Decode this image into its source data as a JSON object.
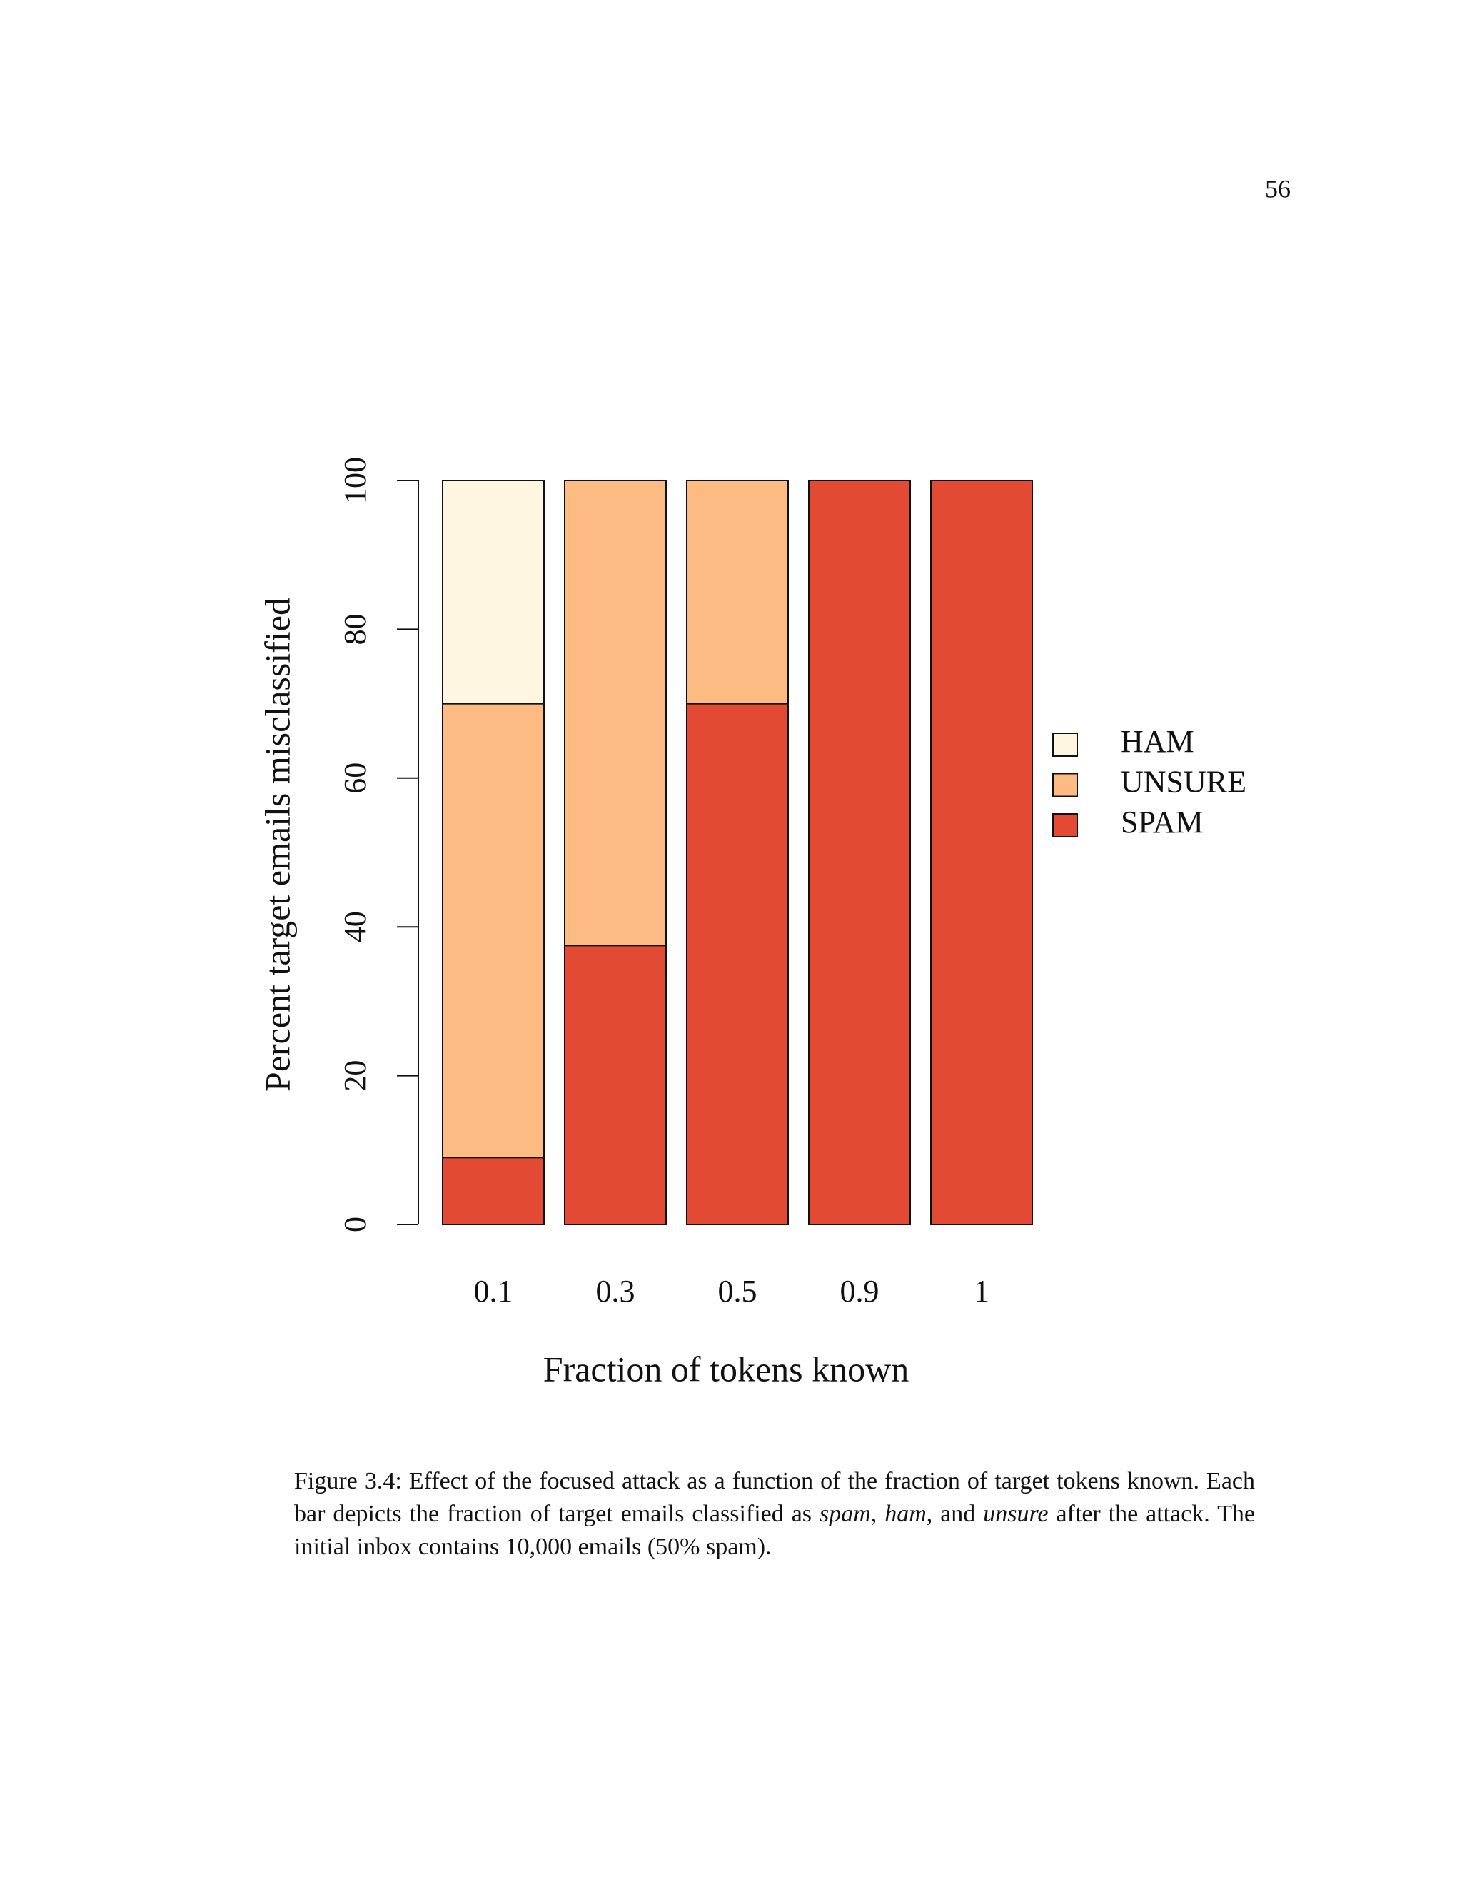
{
  "page_number": "56",
  "chart_data": {
    "type": "stacked_bar",
    "xlabel": "Fraction of tokens known",
    "ylabel": "Percent target emails misclassified",
    "categories": [
      "0.1",
      "0.3",
      "0.5",
      "0.9",
      "1"
    ],
    "series": [
      {
        "name": "HAM",
        "color": "#fef6e0",
        "values": [
          30,
          0,
          0,
          0,
          0
        ]
      },
      {
        "name": "UNSURE",
        "color": "#fdbb84",
        "values": [
          61,
          62.5,
          30,
          0,
          0
        ]
      },
      {
        "name": "SPAM",
        "color": "#e34a33",
        "values": [
          9,
          37.5,
          70,
          100,
          100
        ]
      }
    ],
    "ylim": [
      0,
      100
    ],
    "yticks": [
      0,
      20,
      40,
      60,
      80,
      100
    ],
    "grid": false,
    "legend": "right"
  },
  "caption": [
    {
      "text": "Figure 3.4: Effect of the focused attack as a function of the fraction of target tokens known. Each bar depicts the fraction of target emails classified as ",
      "italic": false
    },
    {
      "text": "spam",
      "italic": true
    },
    {
      "text": ", ",
      "italic": false
    },
    {
      "text": "ham",
      "italic": true
    },
    {
      "text": ", and ",
      "italic": false
    },
    {
      "text": "unsure",
      "italic": true
    },
    {
      "text": " after the attack. The initial inbox contains 10,000 emails (50% spam).",
      "italic": false
    }
  ]
}
